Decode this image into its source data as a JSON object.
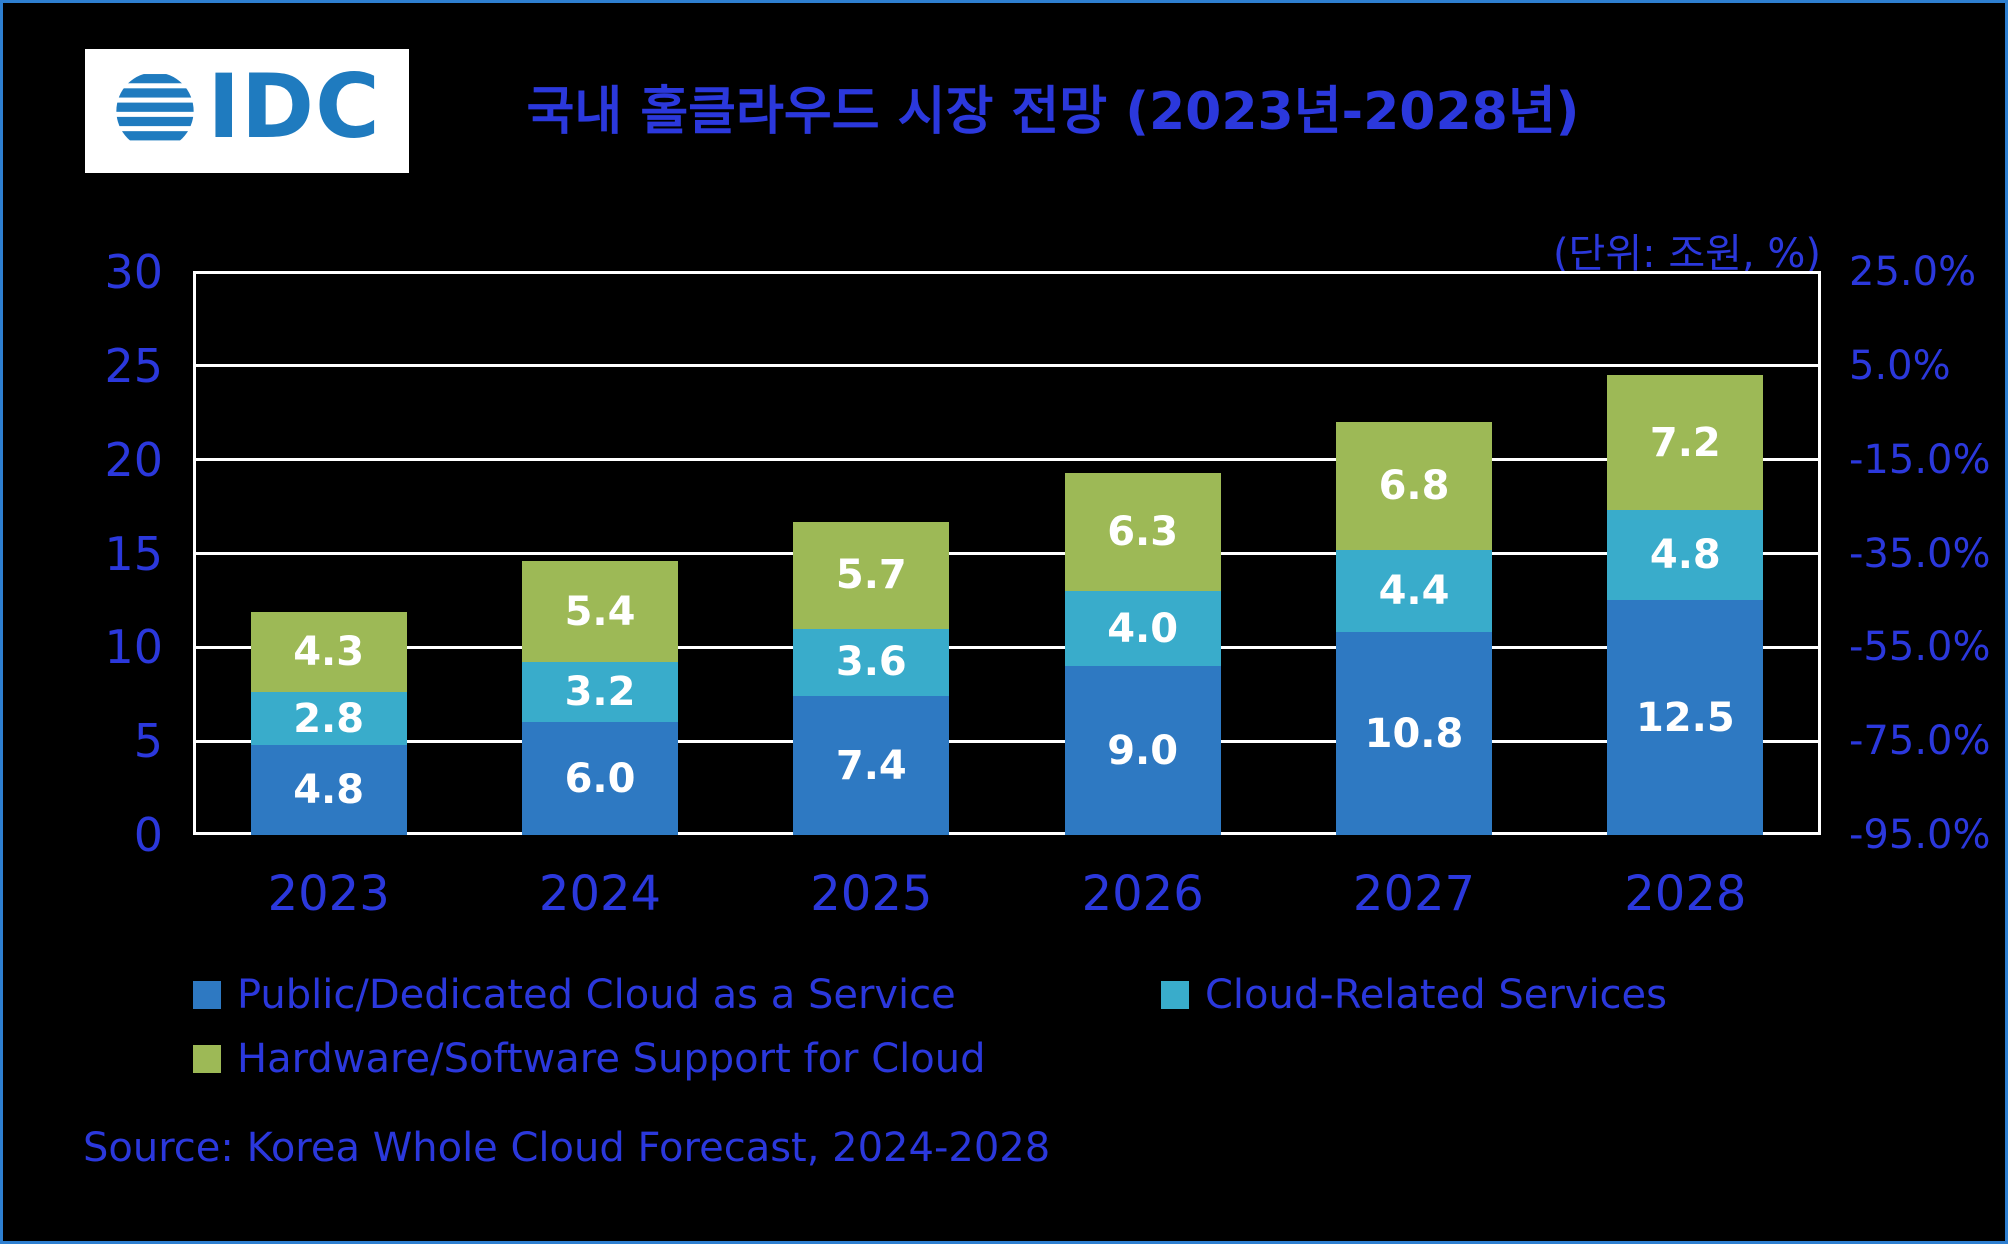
{
  "logo": {
    "text": "IDC"
  },
  "source": "Source: Korea Whole Cloud Forecast, 2024-2028",
  "colors": {
    "background": "#000000",
    "border": "#2E7FD0",
    "text_blue": "#2B38DC",
    "grid": "#FFFFFF",
    "bar_label": "#FFFFFF",
    "logo_blue": "#1F7BBF",
    "logo_background": "#FFFFFF"
  },
  "chart_data": {
    "type": "bar",
    "stacked": true,
    "title": "국내 홀클라우드 시장 전망 (2023년-2028년)",
    "unit_label": "(단위: 조원, %)",
    "categories": [
      "2023",
      "2024",
      "2025",
      "2026",
      "2027",
      "2028"
    ],
    "series": [
      {
        "name": "Public/Dedicated Cloud as a Service",
        "color": "#2E79C2",
        "values": [
          4.8,
          6.0,
          7.4,
          9.0,
          10.8,
          12.5
        ]
      },
      {
        "name": "Cloud-Related Services",
        "color": "#39ACCB",
        "values": [
          2.8,
          3.2,
          3.6,
          4.0,
          4.4,
          4.8
        ]
      },
      {
        "name": "Hardware/Software Support for Cloud",
        "color": "#9DB956",
        "values": [
          4.3,
          5.4,
          5.7,
          6.3,
          6.8,
          7.2
        ]
      }
    ],
    "left_axis": {
      "ylim": [
        0,
        30
      ],
      "ticks": [
        0,
        5,
        10,
        15,
        20,
        25,
        30
      ],
      "labels": [
        "0",
        "5",
        "10",
        "15",
        "20",
        "25",
        "30"
      ]
    },
    "right_axis": {
      "labels": [
        "-95.0%",
        "-75.0%",
        "-55.0%",
        "-35.0%",
        "-15.0%",
        "5.0%",
        "25.0%"
      ]
    },
    "grid": true,
    "legend_position": "bottom"
  }
}
